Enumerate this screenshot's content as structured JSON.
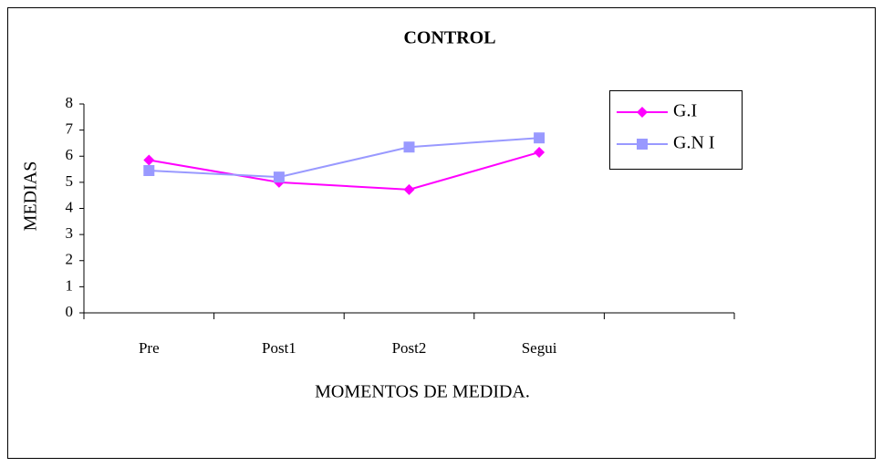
{
  "chart_data": {
    "type": "line",
    "title": "CONTROL",
    "x_label": "MOMENTOS DE MEDIDA.",
    "y_label": "MEDIAS",
    "categories": [
      "Pre",
      "Post1",
      "Post2",
      "Segui",
      null
    ],
    "series": [
      {
        "name": "G.I",
        "color": "#ff00ff",
        "marker": "diamond",
        "values": [
          5.85,
          5.0,
          4.72,
          6.15,
          null
        ]
      },
      {
        "name": "G.N I",
        "color": "#9999ff",
        "marker": "square",
        "values": [
          5.45,
          5.2,
          6.35,
          6.7,
          null
        ]
      }
    ],
    "ylim": [
      0,
      8
    ],
    "yticks": [
      0,
      1,
      2,
      3,
      4,
      5,
      6,
      7,
      8
    ],
    "legend": "right"
  }
}
